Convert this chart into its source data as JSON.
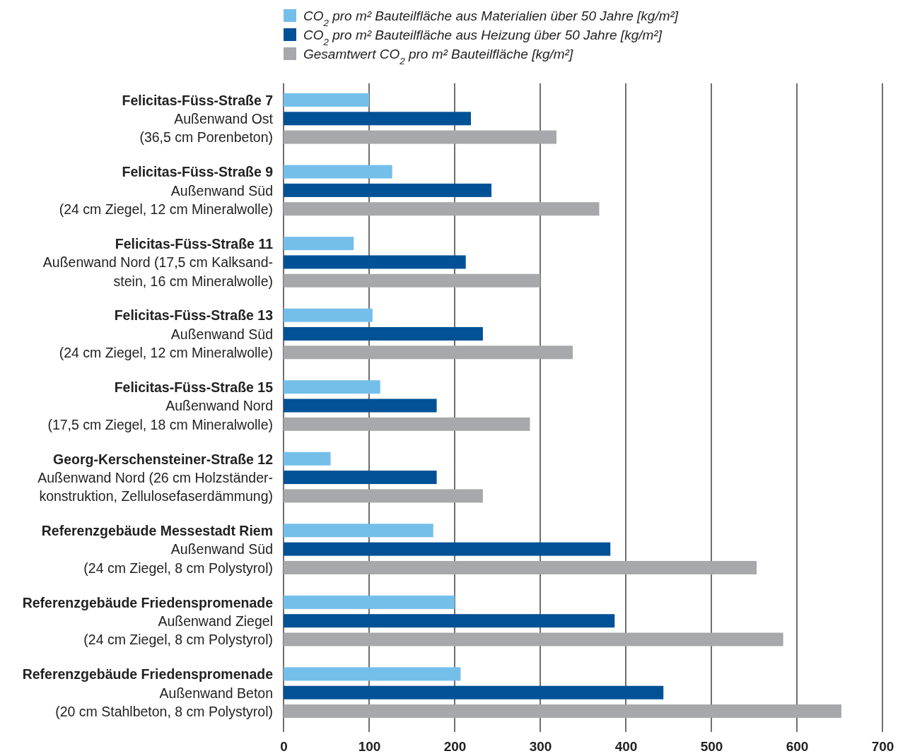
{
  "chart_data": {
    "type": "bar",
    "orientation": "horizontal",
    "categories": [
      "Felicitas-Füss-Straße 7\nAußenwand Ost\n(36,5 cm Porenbeton)",
      "Felicitas-Füss-Straße 9\nAußenwand Süd\n(24 cm Ziegel, 12 cm Mineralwolle)",
      "Felicitas-Füss-Straße 11\nAußenwand Nord (17,5 cm Kalksand-\nstein, 16 cm Mineralwolle)",
      "Felicitas-Füss-Straße 13\nAußenwand Süd\n(24 cm Ziegel, 12 cm Mineralwolle)",
      "Felicitas-Füss-Straße 15\nAußenwand Nord\n(17,5 cm Ziegel, 18 cm Mineralwolle)",
      "Georg-Kerschensteiner-Straße 12\nAußenwand Nord (26 cm Holzständer-\nkonstruktion, Zellulosefaserdämmung)",
      "Referenzgebäude Messestadt Riem\nAußenwand Süd\n(24 cm Ziegel, 8 cm Polystyrol)",
      "Referenzgebäude Friedenspromenade\nAußenwand Ziegel\n(24 cm Ziegel, 8 cm Polystyrol)",
      "Referenzgebäude Friedenspromenade\nAußenwand Beton\n(20 cm Stahlbeton, 8 cm Polystyrol)"
    ],
    "series": [
      {
        "name": "CO$_{2}$ pro m² Bauteilfläche aus Materialien über 50 Jahre [kg/m²]",
        "color": "#74bfea",
        "values": [
          100,
          127,
          82,
          104,
          113,
          55,
          175,
          200,
          207
        ]
      },
      {
        "name": "CO$_{2}$ pro m² Bauteilfläche aus Heizung über 50 Jahre [kg/m²]",
        "color": "#005196",
        "values": [
          219,
          243,
          213,
          233,
          179,
          179,
          382,
          387,
          444
        ]
      },
      {
        "name": "Gesamtwert CO$_{2}$ pro m² Bauteilfläche [kg/m²]",
        "color": "#a7a8ab",
        "values": [
          319,
          369,
          300,
          338,
          288,
          233,
          553,
          584,
          652
        ]
      }
    ],
    "xlim": [
      0,
      700
    ],
    "xticks": [
      0,
      100,
      200,
      300,
      400,
      500,
      600,
      700
    ],
    "grid": "x",
    "legend": "top"
  }
}
